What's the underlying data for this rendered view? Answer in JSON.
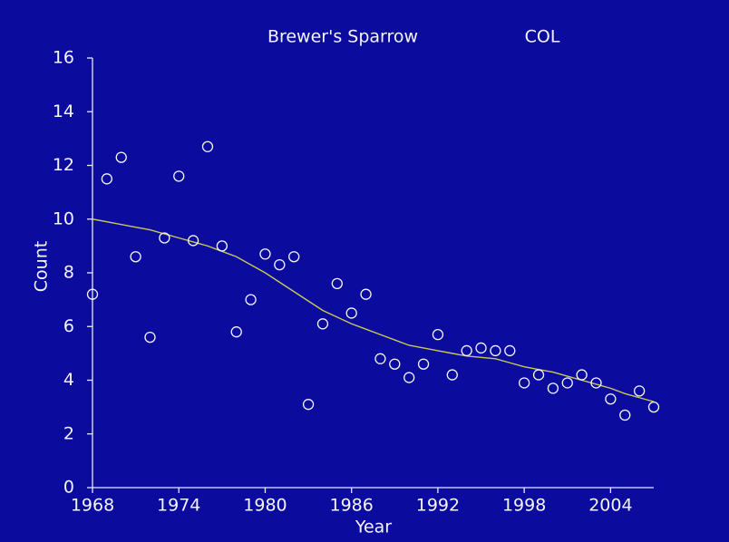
{
  "chart_data": {
    "type": "scatter",
    "title": "Brewer's Sparrow",
    "subtitle": "COL",
    "x_label": "Year",
    "y_label": "Count",
    "x": [
      1968,
      1969,
      1970,
      1971,
      1972,
      1973,
      1974,
      1975,
      1976,
      1977,
      1978,
      1979,
      1980,
      1981,
      1982,
      1983,
      1984,
      1985,
      1986,
      1987,
      1988,
      1989,
      1990,
      1991,
      1992,
      1993,
      1994,
      1995,
      1996,
      1997,
      1998,
      1999,
      2000,
      2001,
      2002,
      2003,
      2004,
      2005,
      2006,
      2007
    ],
    "values": [
      7.2,
      11.5,
      12.3,
      8.6,
      5.6,
      9.3,
      11.6,
      9.2,
      12.7,
      9.0,
      5.8,
      7.0,
      8.7,
      8.3,
      8.6,
      3.1,
      6.1,
      7.6,
      6.5,
      7.2,
      4.8,
      4.6,
      4.1,
      4.6,
      5.7,
      4.2,
      5.1,
      5.2,
      5.1,
      5.1,
      3.9,
      4.2,
      3.7,
      3.9,
      4.2,
      3.9,
      3.3,
      2.7,
      3.6,
      3.0
    ],
    "trend": [
      10.0,
      9.9,
      9.8,
      9.7,
      9.6,
      9.45,
      9.3,
      9.15,
      9.0,
      8.8,
      8.6,
      8.3,
      8.0,
      7.65,
      7.3,
      6.95,
      6.6,
      6.35,
      6.1,
      5.9,
      5.7,
      5.5,
      5.3,
      5.2,
      5.1,
      5.0,
      4.9,
      4.85,
      4.8,
      4.65,
      4.5,
      4.4,
      4.3,
      4.15,
      4.0,
      3.85,
      3.7,
      3.5,
      3.35,
      3.2
    ],
    "point_color": "#f4f4ff",
    "trend_color": "#c8c85a",
    "xlim": [
      1968,
      2007
    ],
    "ylim": [
      0,
      16
    ],
    "xticks": [
      1968,
      1974,
      1980,
      1986,
      1992,
      1998,
      2004
    ],
    "yticks": [
      0,
      2,
      4,
      6,
      8,
      10,
      12,
      14,
      16
    ]
  }
}
